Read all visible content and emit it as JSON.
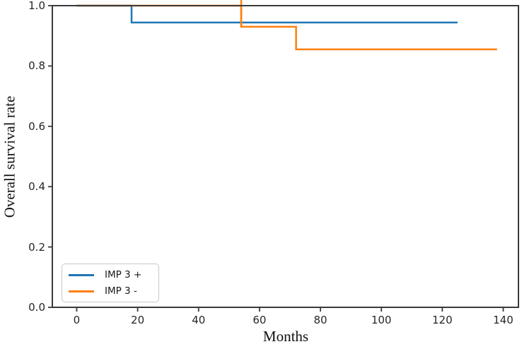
{
  "chart_data": {
    "type": "step",
    "title": "",
    "xlabel": "Months",
    "ylabel": "Overall survival rate",
    "xlim": [
      -8,
      145
    ],
    "ylim": [
      0.0,
      1.0
    ],
    "xticks": [
      0,
      20,
      40,
      60,
      80,
      100,
      120,
      140
    ],
    "yticks": [
      0.0,
      0.2,
      0.4,
      0.6,
      0.8,
      1.0
    ],
    "grid": false,
    "legend_position": "lower-left",
    "axis_color": "#3a3a3a",
    "tick_label_color": "#262626",
    "series": [
      {
        "name": "IMP 3 +",
        "color": "#1f77b4",
        "points": [
          [
            0,
            1.0
          ],
          [
            18,
            1.0
          ],
          [
            18,
            0.944
          ],
          [
            125,
            0.944
          ]
        ]
      },
      {
        "name": "IMP 3 -",
        "color": "#ff7f0e",
        "points": [
          [
            0,
            1.0
          ],
          [
            54,
            1.0
          ],
          [
            54,
            0.93
          ],
          [
            72,
            0.93
          ],
          [
            72,
            0.855
          ],
          [
            138,
            0.855
          ]
        ],
        "drop_marker_above_axis_at_x": 54
      }
    ]
  }
}
